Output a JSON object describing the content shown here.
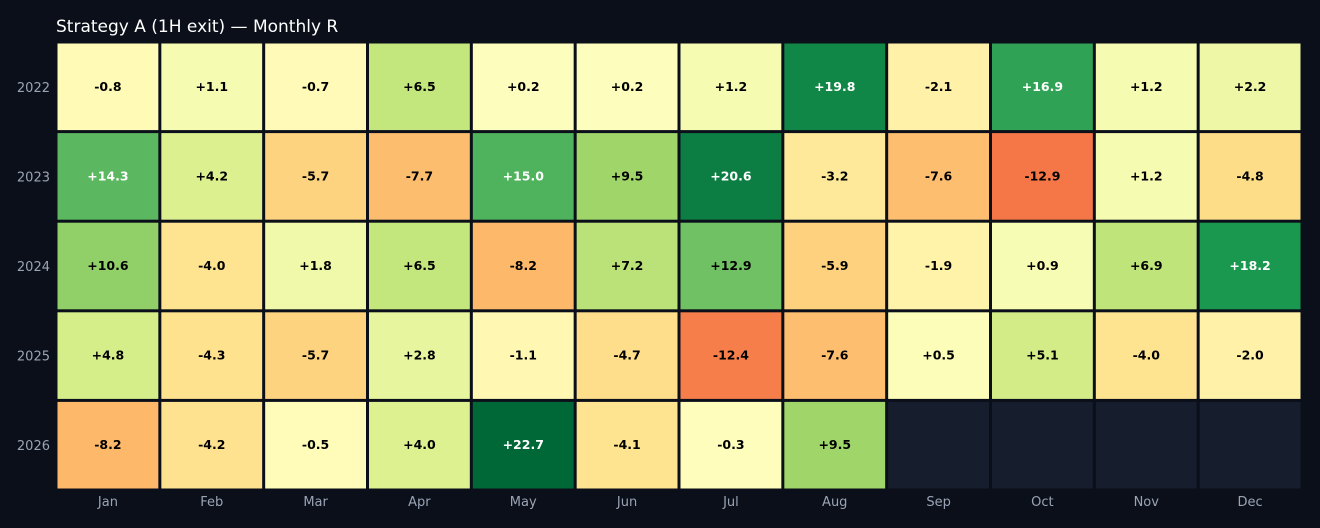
{
  "chart_data": {
    "type": "heatmap",
    "title": "Strategy A (1H exit) — Monthly R",
    "x_categories": [
      "Jan",
      "Feb",
      "Mar",
      "Apr",
      "May",
      "Jun",
      "Jul",
      "Aug",
      "Sep",
      "Oct",
      "Nov",
      "Dec"
    ],
    "y_categories": [
      "2022",
      "2023",
      "2024",
      "2025",
      "2026"
    ],
    "values": [
      [
        -0.8,
        1.1,
        -0.7,
        6.5,
        0.2,
        0.2,
        1.2,
        19.8,
        -2.1,
        16.9,
        1.2,
        2.2
      ],
      [
        14.3,
        4.2,
        -5.7,
        -7.7,
        15.0,
        9.5,
        20.6,
        -3.2,
        -7.6,
        -12.9,
        1.2,
        -4.8
      ],
      [
        10.6,
        -4.0,
        1.8,
        6.5,
        -8.2,
        7.2,
        12.9,
        -5.9,
        -1.9,
        0.9,
        6.9,
        18.2
      ],
      [
        4.8,
        -4.3,
        -5.7,
        2.8,
        -1.1,
        -4.7,
        -12.4,
        -7.6,
        0.5,
        5.1,
        -4.0,
        -2.0
      ],
      [
        -8.2,
        -4.2,
        -0.5,
        4.0,
        22.7,
        -4.1,
        -0.3,
        9.5,
        null,
        null,
        null,
        null
      ]
    ],
    "colormap": "RdYlGn",
    "color_range": [
      -22.7,
      22.7
    ],
    "empty_cell_color": "#161d2c",
    "grid": false,
    "legend": "none"
  }
}
